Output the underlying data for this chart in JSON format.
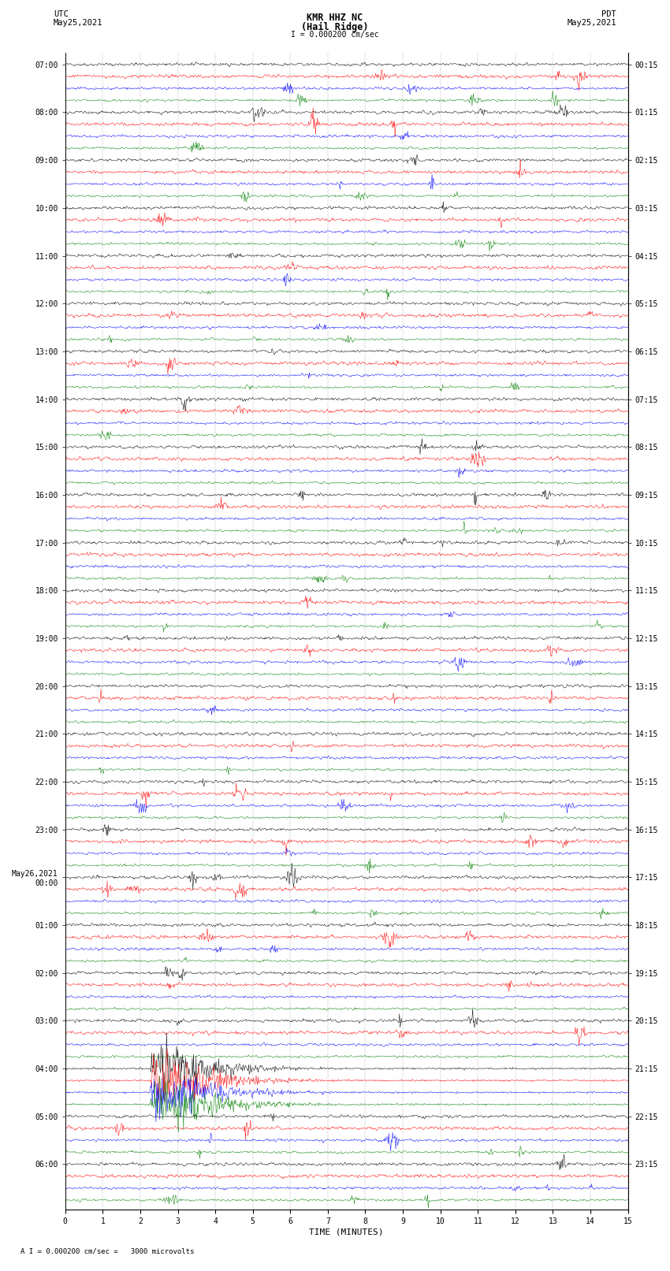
{
  "title_line1": "KMR HHZ NC",
  "title_line2": "(Hail Ridge)",
  "left_label_line1": "UTC",
  "left_label_line2": "May25,2021",
  "right_label_line1": "PDT",
  "right_label_line2": "May25,2021",
  "scale_text": "I = 0.000200 cm/sec",
  "bottom_scale_text": "A I = 0.000200 cm/sec =   3000 microvolts",
  "xlabel": "TIME (MINUTES)",
  "bg_color": "#ffffff",
  "trace_colors": [
    "#000000",
    "#ff0000",
    "#0000ff",
    "#008000"
  ],
  "utc_hour_labels": [
    "07:00",
    "08:00",
    "09:00",
    "10:00",
    "11:00",
    "12:00",
    "13:00",
    "14:00",
    "15:00",
    "16:00",
    "17:00",
    "18:00",
    "19:00",
    "20:00",
    "21:00",
    "22:00",
    "23:00",
    "May26,2021\n00:00",
    "01:00",
    "02:00",
    "03:00",
    "04:00",
    "05:00",
    "06:00"
  ],
  "pdt_hour_labels": [
    "00:15",
    "01:15",
    "02:15",
    "03:15",
    "04:15",
    "05:15",
    "06:15",
    "07:15",
    "08:15",
    "09:15",
    "10:15",
    "11:15",
    "12:15",
    "13:15",
    "14:15",
    "15:15",
    "16:15",
    "17:15",
    "18:15",
    "19:15",
    "20:15",
    "21:15",
    "22:15",
    "23:15"
  ],
  "n_hours": 24,
  "traces_per_hour": 4,
  "xmin": 0,
  "xmax": 15,
  "n_pts": 900,
  "noise_seed": 42,
  "base_amp": 0.12,
  "earthquake_hour": 21,
  "earthquake_amp": 1.8
}
